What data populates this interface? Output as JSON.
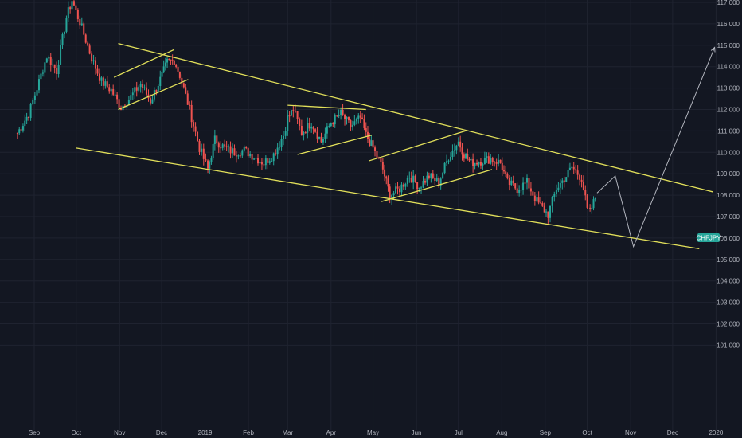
{
  "chart_data": {
    "type": "candlestick",
    "symbol_badge": "CHFJPY",
    "y_ticks": [
      101,
      102,
      103,
      104,
      105,
      106,
      107,
      108,
      109,
      110,
      111,
      112,
      113,
      114,
      115,
      116,
      117
    ],
    "y_tick_labels": [
      "101.000",
      "102.000",
      "103.000",
      "104.000",
      "105.000",
      "106.000",
      "107.000",
      "108.000",
      "109.000",
      "110.000",
      "111.000",
      "112.000",
      "113.000",
      "114.000",
      "115.000",
      "116.000",
      "117.000"
    ],
    "ylim": [
      100.85,
      117.15
    ],
    "x_ticks": [
      "Sep",
      "Oct",
      "Nov",
      "Dec",
      "2019",
      "Feb",
      "Mar",
      "Apr",
      "May",
      "Jun",
      "Jul",
      "Aug",
      "Sep",
      "Oct",
      "Nov",
      "Dec",
      "2020"
    ],
    "x_tick_index": [
      0,
      2,
      4,
      6,
      8,
      10,
      12,
      14,
      16,
      18,
      20,
      22,
      24,
      26,
      28,
      30,
      32
    ],
    "x_months": [
      "2018-09",
      "2018-10",
      "2018-11",
      "2018-12",
      "2019-01",
      "2019-02",
      "2019-03",
      "2019-04",
      "2019-05",
      "2019-06",
      "2019-07",
      "2019-08",
      "2019-09",
      "2019-10",
      "2019-11",
      "2019-12",
      "2020-01"
    ],
    "x_tick_dates": [
      "2018-09-01",
      "2018-10-01",
      "2018-11-01",
      "2018-12-01",
      "2019-01-01",
      "2019-02-01",
      "2019-03-01",
      "2019-04-01",
      "2019-05-01",
      "2019-06-01",
      "2019-07-01",
      "2019-08-01",
      "2019-09-01",
      "2019-10-01",
      "2019-11-01",
      "2019-12-01",
      "2020-01-01"
    ],
    "colors": {
      "up": "#26a69a",
      "down": "#ef5350",
      "trendline": "#e2e05a",
      "projection": "#b2b5be",
      "badge": "#26a69a",
      "background": "#131722"
    },
    "price_path": [
      [
        "2018-08-20",
        110.9
      ],
      [
        "2018-08-28",
        111.8
      ],
      [
        "2018-09-03",
        113.0
      ],
      [
        "2018-09-10",
        114.5
      ],
      [
        "2018-09-17",
        113.8
      ],
      [
        "2018-09-24",
        116.3
      ],
      [
        "2018-09-28",
        117.1
      ],
      [
        "2018-10-05",
        115.8
      ],
      [
        "2018-10-12",
        114.4
      ],
      [
        "2018-10-19",
        113.3
      ],
      [
        "2018-10-26",
        112.9
      ],
      [
        "2018-11-02",
        112.1
      ],
      [
        "2018-11-09",
        112.6
      ],
      [
        "2018-11-16",
        113.2
      ],
      [
        "2018-11-23",
        112.4
      ],
      [
        "2018-11-30",
        113.4
      ],
      [
        "2018-12-05",
        114.2
      ],
      [
        "2018-12-10",
        114.3
      ],
      [
        "2018-12-14",
        113.6
      ],
      [
        "2018-12-21",
        112.0
      ],
      [
        "2018-12-28",
        110.2
      ],
      [
        "2019-01-03",
        109.2
      ],
      [
        "2019-01-08",
        110.6
      ],
      [
        "2019-01-15",
        110.2
      ],
      [
        "2019-01-22",
        110.0
      ],
      [
        "2019-01-29",
        110.1
      ],
      [
        "2019-02-05",
        109.8
      ],
      [
        "2019-02-12",
        109.5
      ],
      [
        "2019-02-19",
        109.9
      ],
      [
        "2019-02-26",
        110.8
      ],
      [
        "2019-03-01",
        111.6
      ],
      [
        "2019-03-05",
        112.0
      ],
      [
        "2019-03-11",
        110.9
      ],
      [
        "2019-03-18",
        111.4
      ],
      [
        "2019-03-25",
        110.5
      ],
      [
        "2019-04-01",
        111.4
      ],
      [
        "2019-04-08",
        111.8
      ],
      [
        "2019-04-15",
        111.2
      ],
      [
        "2019-04-22",
        111.6
      ],
      [
        "2019-04-26",
        110.8
      ],
      [
        "2019-05-01",
        110.2
      ],
      [
        "2019-05-08",
        109.2
      ],
      [
        "2019-05-13",
        108.0
      ],
      [
        "2019-05-20",
        108.3
      ],
      [
        "2019-05-27",
        108.9
      ],
      [
        "2019-06-03",
        108.4
      ],
      [
        "2019-06-10",
        108.9
      ],
      [
        "2019-06-17",
        108.6
      ],
      [
        "2019-06-24",
        109.8
      ],
      [
        "2019-07-01",
        110.5
      ],
      [
        "2019-07-05",
        109.9
      ],
      [
        "2019-07-10",
        109.5
      ],
      [
        "2019-07-17",
        109.6
      ],
      [
        "2019-07-24",
        109.7
      ],
      [
        "2019-07-31",
        109.5
      ],
      [
        "2019-08-05",
        108.6
      ],
      [
        "2019-08-12",
        108.3
      ],
      [
        "2019-08-19",
        108.6
      ],
      [
        "2019-08-26",
        107.7
      ],
      [
        "2019-09-03",
        107.1
      ],
      [
        "2019-09-09",
        108.3
      ],
      [
        "2019-09-16",
        108.9
      ],
      [
        "2019-09-20",
        109.3
      ],
      [
        "2019-09-27",
        108.8
      ],
      [
        "2019-10-01",
        107.3
      ],
      [
        "2019-10-03",
        107.2
      ],
      [
        "2019-10-08",
        108.1
      ]
    ],
    "annotations": [
      {
        "type": "trendline",
        "points": [
          [
            "2018-10-31",
            115.08
          ],
          [
            "2019-12-30",
            108.15
          ]
        ]
      },
      {
        "type": "trendline",
        "points": [
          [
            "2018-10-01",
            110.2
          ],
          [
            "2019-12-20",
            105.5
          ]
        ]
      },
      {
        "type": "trendline",
        "points": [
          [
            "2018-10-28",
            113.5
          ],
          [
            "2018-12-10",
            114.8
          ]
        ]
      },
      {
        "type": "trendline",
        "points": [
          [
            "2018-10-31",
            112.0
          ],
          [
            "2018-12-20",
            113.4
          ]
        ]
      },
      {
        "type": "trendline",
        "points": [
          [
            "2019-03-01",
            112.2
          ],
          [
            "2019-04-26",
            112.0
          ]
        ]
      },
      {
        "type": "trendline",
        "points": [
          [
            "2019-03-08",
            109.9
          ],
          [
            "2019-04-30",
            110.8
          ]
        ]
      },
      {
        "type": "trendline",
        "points": [
          [
            "2019-04-28",
            109.6
          ],
          [
            "2019-07-06",
            111.0
          ]
        ]
      },
      {
        "type": "trendline",
        "points": [
          [
            "2019-05-07",
            107.7
          ],
          [
            "2019-07-25",
            109.2
          ]
        ]
      },
      {
        "type": "projection",
        "points": [
          [
            "2019-10-08",
            108.1
          ],
          [
            "2019-10-21",
            108.9
          ],
          [
            "2019-11-03",
            105.6
          ],
          [
            "2019-12-31",
            114.9
          ]
        ]
      }
    ]
  }
}
